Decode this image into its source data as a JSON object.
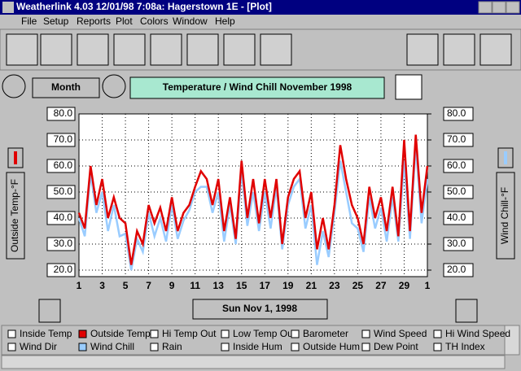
{
  "window": {
    "title": "Weatherlink 4.03  12/01/98  7:08a: Hagerstown 1E - [Plot]"
  },
  "menu": [
    "File",
    "Setup",
    "Reports",
    "Plot",
    "Colors",
    "Window",
    "Help"
  ],
  "controls": {
    "period": "Month",
    "date": "Sun Nov 1, 1998"
  },
  "chart_data": {
    "type": "line",
    "title": "Temperature / Wind Chill  November  1998",
    "y_label": "Outside Temp-°F",
    "y2_label": "Wind Chill-°F",
    "x": [
      1,
      1.5,
      2,
      2.5,
      3,
      3.5,
      4,
      4.5,
      5,
      5.5,
      6,
      6.5,
      7,
      7.5,
      8,
      8.5,
      9,
      9.5,
      10,
      10.5,
      11,
      11.5,
      12,
      12.5,
      13,
      13.5,
      14,
      14.5,
      15,
      15.5,
      16,
      16.5,
      17,
      17.5,
      18,
      18.5,
      19,
      19.5,
      20,
      20.5,
      21,
      21.5,
      22,
      22.5,
      23,
      23.5,
      24,
      24.5,
      25,
      25.5,
      26,
      26.5,
      27,
      27.5,
      28,
      28.5,
      29,
      29.5,
      30,
      30.5,
      31
    ],
    "series": [
      {
        "name": "Outside Temp",
        "color": "#e00000",
        "values": [
          42,
          36,
          60,
          45,
          55,
          40,
          48,
          40,
          38,
          22,
          35,
          30,
          45,
          38,
          44,
          35,
          48,
          35,
          42,
          45,
          52,
          58,
          55,
          45,
          55,
          35,
          48,
          32,
          62,
          40,
          55,
          38,
          55,
          40,
          55,
          30,
          48,
          55,
          58,
          40,
          50,
          28,
          40,
          28,
          45,
          68,
          55,
          45,
          40,
          30,
          52,
          40,
          48,
          35,
          52,
          33,
          70,
          35,
          72,
          42,
          60
        ]
      },
      {
        "name": "Wind Chill",
        "color": "#99ccff",
        "axis": "y2",
        "values": [
          40,
          33,
          57,
          42,
          50,
          35,
          45,
          33,
          34,
          20,
          32,
          27,
          42,
          33,
          40,
          31,
          45,
          32,
          39,
          43,
          50,
          52,
          52,
          42,
          50,
          31,
          45,
          30,
          58,
          37,
          50,
          35,
          50,
          36,
          52,
          28,
          45,
          52,
          55,
          36,
          45,
          22,
          35,
          25,
          42,
          62,
          50,
          38,
          36,
          27,
          48,
          36,
          44,
          31,
          48,
          31,
          62,
          32,
          68,
          38,
          55
        ]
      }
    ],
    "xlim": [
      1,
      31
    ],
    "xticks": [
      1,
      3,
      5,
      7,
      9,
      11,
      13,
      15,
      17,
      19,
      21,
      23,
      25,
      27,
      29,
      {
        "value": 31,
        "label": "1"
      }
    ],
    "ylim": [
      20,
      80
    ],
    "yticks": [
      {
        "value": 20,
        "label": "20.0"
      },
      {
        "value": 30,
        "label": "30.0"
      },
      {
        "value": 40,
        "label": "40.0"
      },
      {
        "value": 50,
        "label": "50.0"
      },
      {
        "value": 60,
        "label": "60.0"
      },
      {
        "value": 70,
        "label": "70.0"
      },
      {
        "value": 80,
        "label": "80.0"
      }
    ],
    "y2lim": [
      20,
      80
    ],
    "y2ticks": [
      {
        "value": 20,
        "label": "20.0"
      },
      {
        "value": 30,
        "label": "30.0"
      },
      {
        "value": 40,
        "label": "40.0"
      },
      {
        "value": 50,
        "label": "50.0"
      },
      {
        "value": 60,
        "label": "60.0"
      },
      {
        "value": 70,
        "label": "70.0"
      },
      {
        "value": 80,
        "label": "80.0"
      }
    ],
    "grid": true
  },
  "legend": [
    {
      "label": "Inside Temp"
    },
    {
      "label": "Outside Temp",
      "color": "#e00000"
    },
    {
      "label": "Hi Temp Out"
    },
    {
      "label": "Low Temp Out"
    },
    {
      "label": "Barometer"
    },
    {
      "label": "Wind Speed"
    },
    {
      "label": "Hi Wind Speed"
    },
    {
      "label": "Wind Dir"
    },
    {
      "label": "Wind Chill",
      "color": "#99ccff"
    },
    {
      "label": "Rain"
    },
    {
      "label": "Inside Hum"
    },
    {
      "label": "Outside Hum"
    },
    {
      "label": "Dew Point"
    },
    {
      "label": "TH Index"
    }
  ]
}
